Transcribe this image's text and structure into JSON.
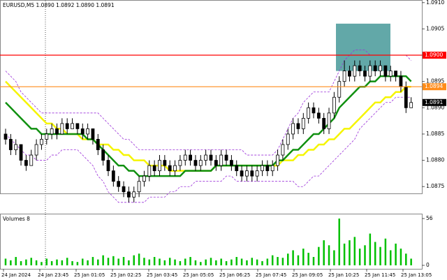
{
  "chart_data": {
    "type": "candlestick",
    "title": "EURUSD,M5  1.0890 1.0892 1.0890 1.0891",
    "ylim": [
      1.08737,
      1.09105
    ],
    "yticks": [
      {
        "value": 1.091,
        "label": "1.0910"
      },
      {
        "value": 1.0905,
        "label": "1.0905"
      },
      {
        "value": 1.09,
        "label": "1.0900"
      },
      {
        "value": 1.0895,
        "label": "1.0895"
      },
      {
        "value": 1.089,
        "label": "1.0890"
      },
      {
        "value": 1.0885,
        "label": "1.0885"
      },
      {
        "value": 1.088,
        "label": "1.0880"
      },
      {
        "value": 1.0875,
        "label": "1.0875"
      }
    ],
    "x_labels": [
      "24 Jan 2024",
      "24 Jan 23:45",
      "25 Jan 01:05",
      "25 Jan 02:25",
      "25 Jan 03:45",
      "25 Jan 05:05",
      "25 Jan 06:25",
      "25 Jan 07:45",
      "25 Jan 09:05",
      "25 Jan 10:25",
      "25 Jan 11:45",
      "25 Jan 13:05"
    ],
    "levels": [
      {
        "value": 1.09,
        "label": "1.0900",
        "color": "#ff0000",
        "line": true
      },
      {
        "value": 1.0894,
        "label": "1.0894",
        "color": "#ff8c1a",
        "line": true
      },
      {
        "value": 1.0891,
        "label": "1.0891",
        "color": "#000000",
        "line": false
      }
    ],
    "zone": {
      "top": 1.0906,
      "bottom": 1.0897,
      "color": "#2e8b8b"
    },
    "ohlc": [
      [
        1.0885,
        1.0886,
        1.0883,
        1.0884
      ],
      [
        1.0884,
        1.0885,
        1.0881,
        1.0882
      ],
      [
        1.0882,
        1.0884,
        1.0881,
        1.0883
      ],
      [
        1.0883,
        1.0883,
        1.0879,
        1.088
      ],
      [
        1.088,
        1.0881,
        1.0878,
        1.0879
      ],
      [
        1.0879,
        1.0882,
        1.0879,
        1.0881
      ],
      [
        1.0881,
        1.0884,
        1.088,
        1.0883
      ],
      [
        1.0883,
        1.0885,
        1.0882,
        1.0884
      ],
      [
        1.0884,
        1.0886,
        1.0883,
        1.0885
      ],
      [
        1.0885,
        1.0887,
        1.0884,
        1.0886
      ],
      [
        1.0886,
        1.0887,
        1.0884,
        1.0885
      ],
      [
        1.0885,
        1.0888,
        1.0885,
        1.0887
      ],
      [
        1.0887,
        1.0888,
        1.0885,
        1.0886
      ],
      [
        1.0886,
        1.0888,
        1.0886,
        1.0887
      ],
      [
        1.0887,
        1.0887,
        1.0885,
        1.0886
      ],
      [
        1.0886,
        1.0887,
        1.0884,
        1.0885
      ],
      [
        1.0885,
        1.0887,
        1.0884,
        1.0886
      ],
      [
        1.0886,
        1.0886,
        1.0883,
        1.0884
      ],
      [
        1.0884,
        1.0885,
        1.0881,
        1.0882
      ],
      [
        1.0882,
        1.0883,
        1.0879,
        1.088
      ],
      [
        1.088,
        1.0881,
        1.0877,
        1.0878
      ],
      [
        1.0878,
        1.0879,
        1.0875,
        1.0876
      ],
      [
        1.0876,
        1.0877,
        1.0874,
        1.0875
      ],
      [
        1.0875,
        1.0876,
        1.0873,
        1.0874
      ],
      [
        1.0874,
        1.0875,
        1.0872,
        1.0873
      ],
      [
        1.0873,
        1.0875,
        1.0872,
        1.0874
      ],
      [
        1.0874,
        1.0877,
        1.0873,
        1.0876
      ],
      [
        1.0876,
        1.0878,
        1.0875,
        1.0877
      ],
      [
        1.0877,
        1.088,
        1.0876,
        1.0879
      ],
      [
        1.0879,
        1.088,
        1.0877,
        1.0878
      ],
      [
        1.0878,
        1.0881,
        1.0877,
        1.088
      ],
      [
        1.088,
        1.0881,
        1.0878,
        1.0879
      ],
      [
        1.0879,
        1.088,
        1.0877,
        1.0878
      ],
      [
        1.0878,
        1.088,
        1.0877,
        1.0879
      ],
      [
        1.0879,
        1.0881,
        1.0878,
        1.088
      ],
      [
        1.088,
        1.0882,
        1.0879,
        1.0881
      ],
      [
        1.0881,
        1.0882,
        1.0879,
        1.088
      ],
      [
        1.088,
        1.0881,
        1.0878,
        1.0879
      ],
      [
        1.0879,
        1.0881,
        1.0878,
        1.088
      ],
      [
        1.088,
        1.0882,
        1.0879,
        1.0881
      ],
      [
        1.0881,
        1.0882,
        1.0879,
        1.088
      ],
      [
        1.088,
        1.0881,
        1.0878,
        1.0879
      ],
      [
        1.0879,
        1.0882,
        1.0878,
        1.0881
      ],
      [
        1.0881,
        1.0882,
        1.0879,
        1.088
      ],
      [
        1.088,
        1.0881,
        1.0878,
        1.0879
      ],
      [
        1.0879,
        1.088,
        1.0877,
        1.0878
      ],
      [
        1.0878,
        1.0879,
        1.0876,
        1.0877
      ],
      [
        1.0877,
        1.0879,
        1.0876,
        1.0878
      ],
      [
        1.0878,
        1.0879,
        1.0876,
        1.0877
      ],
      [
        1.0877,
        1.0879,
        1.0876,
        1.0878
      ],
      [
        1.0878,
        1.088,
        1.0877,
        1.0879
      ],
      [
        1.0879,
        1.088,
        1.0877,
        1.0878
      ],
      [
        1.0878,
        1.088,
        1.0877,
        1.0879
      ],
      [
        1.0879,
        1.0882,
        1.0878,
        1.0881
      ],
      [
        1.0881,
        1.0884,
        1.088,
        1.0883
      ],
      [
        1.0883,
        1.0886,
        1.0882,
        1.0885
      ],
      [
        1.0885,
        1.0888,
        1.0884,
        1.0887
      ],
      [
        1.0887,
        1.0888,
        1.0885,
        1.0886
      ],
      [
        1.0886,
        1.0889,
        1.0885,
        1.0888
      ],
      [
        1.0888,
        1.0891,
        1.0887,
        1.089
      ],
      [
        1.089,
        1.0891,
        1.0888,
        1.0889
      ],
      [
        1.0889,
        1.089,
        1.0887,
        1.0888
      ],
      [
        1.0888,
        1.0889,
        1.0885,
        1.0886
      ],
      [
        1.0886,
        1.089,
        1.0885,
        1.0889
      ],
      [
        1.0889,
        1.0893,
        1.0888,
        1.0892
      ],
      [
        1.0892,
        1.0896,
        1.0891,
        1.0895
      ],
      [
        1.0895,
        1.0899,
        1.0894,
        1.0897
      ],
      [
        1.0897,
        1.0898,
        1.0895,
        1.0896
      ],
      [
        1.0896,
        1.0899,
        1.0895,
        1.0898
      ],
      [
        1.0898,
        1.0899,
        1.0896,
        1.0897
      ],
      [
        1.0897,
        1.0898,
        1.0895,
        1.0896
      ],
      [
        1.0896,
        1.0899,
        1.0895,
        1.0898
      ],
      [
        1.0898,
        1.0899,
        1.0896,
        1.0897
      ],
      [
        1.0897,
        1.0899,
        1.0896,
        1.0898
      ],
      [
        1.0898,
        1.0898,
        1.0895,
        1.0896
      ],
      [
        1.0896,
        1.0898,
        1.0895,
        1.0897
      ],
      [
        1.0897,
        1.0897,
        1.0895,
        1.0896
      ],
      [
        1.0896,
        1.0897,
        1.0893,
        1.0894
      ],
      [
        1.0894,
        1.0895,
        1.0889,
        1.089
      ],
      [
        1.089,
        1.0892,
        1.089,
        1.0891
      ]
    ],
    "indicators": [
      {
        "color": "#9b30d9",
        "dash": true,
        "values": [
          1.0897,
          1.0896,
          1.0895,
          1.0893,
          1.0892,
          1.0891,
          1.089,
          1.0889,
          1.0889,
          1.0889,
          1.0889,
          1.0889,
          1.0889,
          1.0889,
          1.0889,
          1.0889,
          1.0889,
          1.0889,
          1.0889,
          1.0888,
          1.0887,
          1.0886,
          1.0885,
          1.0884,
          1.0884,
          1.0883,
          1.0882,
          1.0882,
          1.0882,
          1.0882,
          1.0882,
          1.0882,
          1.0882,
          1.0882,
          1.0882,
          1.0882,
          1.0882,
          1.0882,
          1.0882,
          1.0882,
          1.0882,
          1.0882,
          1.0882,
          1.0882,
          1.0882,
          1.0882,
          1.0882,
          1.0881,
          1.0881,
          1.0881,
          1.0881,
          1.0881,
          1.0881,
          1.0882,
          1.0884,
          1.0886,
          1.0888,
          1.0889,
          1.0891,
          1.0892,
          1.0893,
          1.0893,
          1.0893,
          1.0893,
          1.0895,
          1.0897,
          1.0899,
          1.09,
          1.0901,
          1.0901,
          1.0901,
          1.09,
          1.09,
          1.09,
          1.09,
          1.09,
          1.09,
          1.09,
          1.09,
          1.0899
        ]
      },
      {
        "color": "#9b30d9",
        "dash": true,
        "values": [
          1.0885,
          1.0884,
          1.0883,
          1.0882,
          1.0881,
          1.0881,
          1.088,
          1.088,
          1.088,
          1.0881,
          1.0881,
          1.0882,
          1.0882,
          1.0882,
          1.0882,
          1.0881,
          1.088,
          1.0879,
          1.0877,
          1.0876,
          1.0874,
          1.0873,
          1.0872,
          1.0872,
          1.0872,
          1.0872,
          1.0872,
          1.0872,
          1.0873,
          1.0873,
          1.0873,
          1.0873,
          1.0874,
          1.0874,
          1.0875,
          1.0875,
          1.0875,
          1.0876,
          1.0876,
          1.0876,
          1.0876,
          1.0876,
          1.0876,
          1.0877,
          1.0877,
          1.0876,
          1.0876,
          1.0876,
          1.0876,
          1.0876,
          1.0876,
          1.0876,
          1.0876,
          1.0876,
          1.0876,
          1.0876,
          1.0876,
          1.0875,
          1.0875,
          1.0876,
          1.0877,
          1.0877,
          1.0878,
          1.0879,
          1.088,
          1.0881,
          1.0882,
          1.0883,
          1.0884,
          1.0886,
          1.0887,
          1.0888,
          1.0889,
          1.089,
          1.0891,
          1.0891,
          1.0892,
          1.0892,
          1.0892,
          1.0892
        ]
      },
      {
        "color": "#f5f500",
        "dash": false,
        "values": [
          1.0895,
          1.0894,
          1.0893,
          1.0892,
          1.0891,
          1.089,
          1.0889,
          1.0888,
          1.0887,
          1.0887,
          1.0886,
          1.0886,
          1.0885,
          1.0885,
          1.0885,
          1.0884,
          1.0884,
          1.0884,
          1.0883,
          1.0883,
          1.0883,
          1.0882,
          1.0882,
          1.0881,
          1.0881,
          1.088,
          1.088,
          1.088,
          1.0879,
          1.0879,
          1.0879,
          1.0879,
          1.0878,
          1.0878,
          1.0878,
          1.0878,
          1.0878,
          1.0878,
          1.0878,
          1.0878,
          1.0878,
          1.0879,
          1.0879,
          1.0879,
          1.0879,
          1.0879,
          1.0879,
          1.0879,
          1.0879,
          1.0879,
          1.0879,
          1.0879,
          1.0879,
          1.0879,
          1.088,
          1.088,
          1.088,
          1.0881,
          1.0881,
          1.0882,
          1.0882,
          1.0883,
          1.0883,
          1.0884,
          1.0884,
          1.0885,
          1.0886,
          1.0886,
          1.0887,
          1.0888,
          1.0889,
          1.089,
          1.0891,
          1.0891,
          1.0892,
          1.0892,
          1.0893,
          1.0893,
          1.0894,
          1.0894
        ]
      },
      {
        "color": "#109010",
        "dash": false,
        "values": [
          1.0891,
          1.089,
          1.0889,
          1.0888,
          1.0887,
          1.0886,
          1.0886,
          1.0885,
          1.0885,
          1.0885,
          1.0885,
          1.0885,
          1.0885,
          1.0885,
          1.0885,
          1.0885,
          1.0884,
          1.0884,
          1.0883,
          1.0882,
          1.0881,
          1.088,
          1.0879,
          1.0879,
          1.0878,
          1.0878,
          1.0877,
          1.0877,
          1.0877,
          1.0877,
          1.0877,
          1.0877,
          1.0877,
          1.0877,
          1.0877,
          1.0878,
          1.0878,
          1.0878,
          1.0878,
          1.0878,
          1.0878,
          1.0879,
          1.0879,
          1.0879,
          1.0879,
          1.0879,
          1.0879,
          1.0879,
          1.0879,
          1.0879,
          1.0879,
          1.0879,
          1.0879,
          1.088,
          1.088,
          1.0881,
          1.0882,
          1.0882,
          1.0883,
          1.0884,
          1.0885,
          1.0885,
          1.0886,
          1.0887,
          1.0888,
          1.089,
          1.0891,
          1.0892,
          1.0893,
          1.0894,
          1.0894,
          1.0895,
          1.0895,
          1.0896,
          1.0896,
          1.0896,
          1.0896,
          1.0896,
          1.0896,
          1.0895
        ]
      }
    ],
    "volume": {
      "label": "Volumes 8",
      "color": "#00c000",
      "ylim": [
        0,
        61
      ],
      "yticks": [
        56,
        0
      ],
      "values": [
        8,
        6,
        10,
        5,
        7,
        9,
        6,
        4,
        8,
        5,
        7,
        6,
        9,
        5,
        4,
        8,
        6,
        10,
        7,
        12,
        9,
        11,
        8,
        10,
        6,
        12,
        14,
        9,
        7,
        10,
        8,
        6,
        9,
        7,
        5,
        8,
        10,
        6,
        4,
        7,
        9,
        6,
        8,
        5,
        7,
        10,
        8,
        6,
        9,
        7,
        5,
        8,
        12,
        10,
        9,
        14,
        18,
        12,
        20,
        15,
        10,
        22,
        30,
        24,
        18,
        56,
        26,
        30,
        34,
        20,
        24,
        38,
        28,
        22,
        32,
        18,
        26,
        20,
        14,
        8
      ]
    }
  }
}
